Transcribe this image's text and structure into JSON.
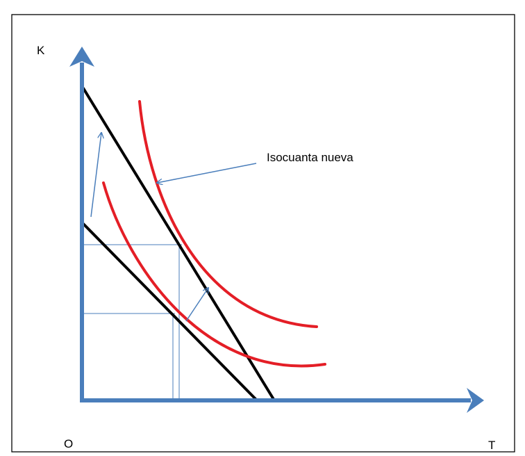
{
  "labels": {
    "y_axis": "K",
    "origin": "O",
    "x_axis": "T",
    "annotation": "Isocuanta nueva"
  },
  "colors": {
    "axes": "#4a7ebb",
    "guides": "#4a7ebb",
    "isocost": "#000000",
    "isoquant": "#e41e26",
    "frame": "#000000"
  }
}
